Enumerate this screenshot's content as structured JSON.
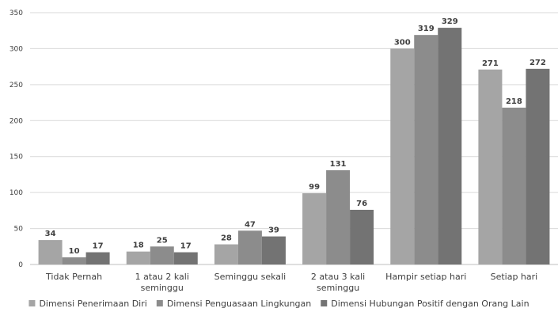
{
  "chart_data": {
    "type": "bar",
    "title": "",
    "xlabel": "",
    "ylabel": "",
    "ylim": [
      0,
      350
    ],
    "yticks": [
      0,
      50,
      100,
      150,
      200,
      250,
      300,
      350
    ],
    "grid": true,
    "legend_position": "bottom",
    "categories": [
      [
        "Tidak Pernah"
      ],
      [
        "1 atau 2 kali",
        "seminggu"
      ],
      [
        "Seminggu sekali"
      ],
      [
        "2 atau 3 kali",
        "seminggu"
      ],
      [
        "Hampir setiap hari"
      ],
      [
        "Setiap hari"
      ]
    ],
    "series": [
      {
        "name": "Dimensi Penerimaan Diri",
        "color": "#a5a5a5",
        "values": [
          34,
          18,
          28,
          99,
          300,
          271
        ]
      },
      {
        "name": "Dimensi Penguasaan Lingkungan",
        "color": "#8c8c8c",
        "values": [
          10,
          25,
          47,
          131,
          319,
          218
        ]
      },
      {
        "name": "Dimensi Hubungan Positif dengan Orang Lain",
        "color": "#737373",
        "values": [
          17,
          17,
          39,
          76,
          329,
          272
        ]
      }
    ]
  }
}
